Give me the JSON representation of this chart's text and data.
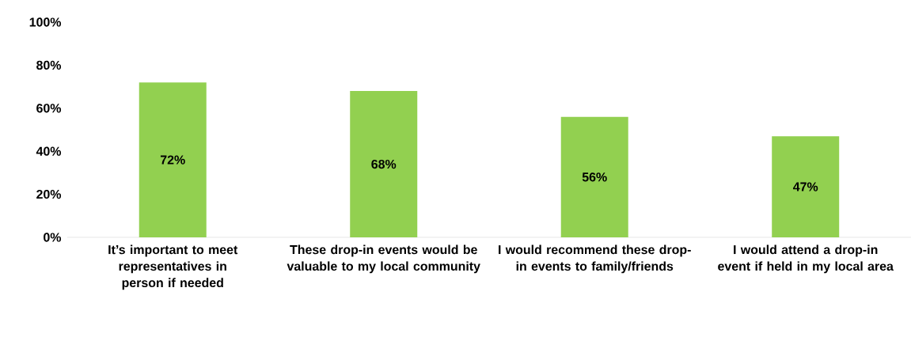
{
  "chart_data": {
    "type": "bar",
    "categories": [
      "It’s important to meet representatives in person if needed",
      "These drop-in events would be valuable to my local community",
      "I would recommend these drop-in events to family/friends",
      "I would attend a drop-in event if held in my local area"
    ],
    "values": [
      72,
      68,
      56,
      47
    ],
    "value_labels": [
      "72%",
      "68%",
      "56%",
      "47%"
    ],
    "color": "#92d050",
    "ylim": [
      0,
      100
    ],
    "yticks": [
      {
        "value": 0,
        "label": "0%"
      },
      {
        "value": 20,
        "label": "20%"
      },
      {
        "value": 40,
        "label": "40%"
      },
      {
        "value": 60,
        "label": "60%"
      },
      {
        "value": 80,
        "label": "80%"
      },
      {
        "value": 100,
        "label": "100%"
      }
    ],
    "grid": false
  }
}
